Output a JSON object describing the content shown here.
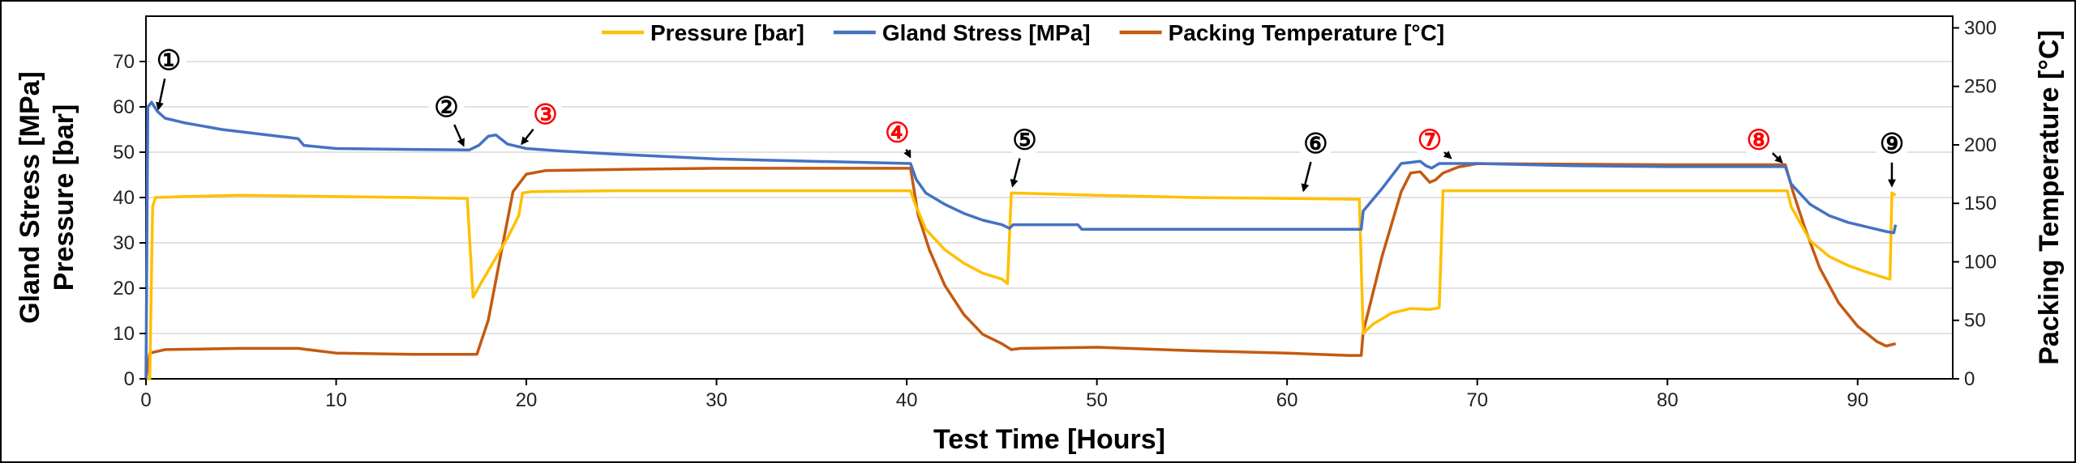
{
  "chart_data": {
    "type": "line",
    "title": "",
    "xlabel": "Test Time [Hours]",
    "ylabel_left_lines": [
      "Gland Stress [MPa]",
      "Pressure [bar]"
    ],
    "ylabel_right": "Packing Temperature [°C]",
    "xlim": [
      0,
      95
    ],
    "xticks": [
      0,
      10,
      20,
      30,
      40,
      50,
      60,
      70,
      80,
      90
    ],
    "ylim_left": [
      0,
      80
    ],
    "yticks_left": [
      0,
      10,
      20,
      30,
      40,
      50,
      60,
      70
    ],
    "ylim_right": [
      0,
      310
    ],
    "yticks_right": [
      0,
      50,
      100,
      150,
      200,
      250,
      300
    ],
    "grid": true,
    "legend_position": "top",
    "series": [
      {
        "name": "Pressure [bar]",
        "axis": "left",
        "color": "#FFC000",
        "points": [
          [
            0,
            0
          ],
          [
            0.2,
            0
          ],
          [
            0.35,
            38
          ],
          [
            0.5,
            40
          ],
          [
            2,
            40.2
          ],
          [
            5,
            40.5
          ],
          [
            10,
            40.2
          ],
          [
            14,
            40
          ],
          [
            16.9,
            39.8
          ],
          [
            17,
            32
          ],
          [
            17.2,
            18
          ],
          [
            17.6,
            21
          ],
          [
            18.3,
            26
          ],
          [
            19,
            31
          ],
          [
            19.6,
            36
          ],
          [
            19.8,
            41
          ],
          [
            20.3,
            41.3
          ],
          [
            25,
            41.5
          ],
          [
            30,
            41.5
          ],
          [
            35,
            41.5
          ],
          [
            40.2,
            41.5
          ],
          [
            40.4,
            39
          ],
          [
            41,
            33
          ],
          [
            42,
            28.5
          ],
          [
            43,
            25.5
          ],
          [
            44,
            23.3
          ],
          [
            45,
            22
          ],
          [
            45.3,
            21
          ],
          [
            45.5,
            41
          ],
          [
            50,
            40.5
          ],
          [
            55,
            40
          ],
          [
            60,
            39.8
          ],
          [
            63.8,
            39.6
          ],
          [
            64,
            10
          ],
          [
            64.5,
            12
          ],
          [
            65.5,
            14.5
          ],
          [
            66.5,
            15.5
          ],
          [
            67.5,
            15.3
          ],
          [
            67.8,
            15.5
          ],
          [
            68,
            15.7
          ],
          [
            68.2,
            41.5
          ],
          [
            72,
            41.5
          ],
          [
            80,
            41.5
          ],
          [
            86.3,
            41.5
          ],
          [
            86.5,
            38
          ],
          [
            87.5,
            30.5
          ],
          [
            88.5,
            27
          ],
          [
            89.5,
            25
          ],
          [
            90.5,
            23.5
          ],
          [
            91.5,
            22.2
          ],
          [
            91.7,
            22
          ],
          [
            91.8,
            41
          ],
          [
            92,
            40.5
          ]
        ]
      },
      {
        "name": "Gland Stress [MPa]",
        "axis": "left",
        "color": "#4472C4",
        "points": [
          [
            0,
            0
          ],
          [
            0.1,
            60
          ],
          [
            0.3,
            61
          ],
          [
            0.6,
            59
          ],
          [
            1,
            57.5
          ],
          [
            2,
            56.5
          ],
          [
            4,
            55
          ],
          [
            6,
            54
          ],
          [
            8,
            53
          ],
          [
            8.3,
            51.5
          ],
          [
            10,
            50.8
          ],
          [
            14,
            50.6
          ],
          [
            17,
            50.5
          ],
          [
            17.5,
            51.5
          ],
          [
            18,
            53.5
          ],
          [
            18.4,
            53.8
          ],
          [
            19,
            51.8
          ],
          [
            20,
            50.8
          ],
          [
            22,
            50.2
          ],
          [
            25,
            49.5
          ],
          [
            30,
            48.5
          ],
          [
            35,
            48
          ],
          [
            40.2,
            47.5
          ],
          [
            40.5,
            44
          ],
          [
            41,
            41
          ],
          [
            42,
            38.5
          ],
          [
            43,
            36.5
          ],
          [
            44,
            35
          ],
          [
            45,
            34
          ],
          [
            45.4,
            33.2
          ],
          [
            45.6,
            34
          ],
          [
            49,
            34
          ],
          [
            49.2,
            33
          ],
          [
            55,
            33
          ],
          [
            60,
            33
          ],
          [
            63.9,
            33
          ],
          [
            64,
            37
          ],
          [
            65,
            42
          ],
          [
            66,
            47.5
          ],
          [
            67,
            48
          ],
          [
            67.3,
            47
          ],
          [
            67.6,
            46.5
          ],
          [
            68,
            47.5
          ],
          [
            70,
            47.5
          ],
          [
            75,
            47
          ],
          [
            80,
            46.8
          ],
          [
            86.2,
            46.8
          ],
          [
            86.5,
            43
          ],
          [
            87.5,
            38.5
          ],
          [
            88.5,
            36
          ],
          [
            89.5,
            34.5
          ],
          [
            90.5,
            33.5
          ],
          [
            91.5,
            32.5
          ],
          [
            91.9,
            32.2
          ],
          [
            92,
            34
          ]
        ]
      },
      {
        "name": "Packing Temperature [°C]",
        "axis": "right",
        "color": "#C55A11",
        "points": [
          [
            0,
            0
          ],
          [
            0.2,
            22
          ],
          [
            1,
            25
          ],
          [
            5,
            26
          ],
          [
            8,
            26
          ],
          [
            10,
            22
          ],
          [
            14,
            21
          ],
          [
            17,
            21
          ],
          [
            17.4,
            21
          ],
          [
            18,
            50
          ],
          [
            18.7,
            110
          ],
          [
            19.3,
            160
          ],
          [
            20,
            175
          ],
          [
            21,
            178
          ],
          [
            25,
            179
          ],
          [
            30,
            180
          ],
          [
            35,
            180
          ],
          [
            40,
            180
          ],
          [
            40.2,
            180
          ],
          [
            40.6,
            140
          ],
          [
            41.2,
            110
          ],
          [
            42,
            80
          ],
          [
            43,
            55
          ],
          [
            44,
            38
          ],
          [
            45,
            30
          ],
          [
            45.5,
            25
          ],
          [
            46,
            26
          ],
          [
            50,
            27
          ],
          [
            55,
            24
          ],
          [
            60,
            22
          ],
          [
            63.2,
            20
          ],
          [
            63.9,
            20
          ],
          [
            64,
            40
          ],
          [
            65,
            105
          ],
          [
            66,
            160
          ],
          [
            66.5,
            176
          ],
          [
            67,
            177
          ],
          [
            67.5,
            168
          ],
          [
            67.8,
            170
          ],
          [
            68.2,
            176
          ],
          [
            69,
            181
          ],
          [
            70,
            184
          ],
          [
            80,
            183
          ],
          [
            86.2,
            183
          ],
          [
            86.6,
            160
          ],
          [
            87.2,
            130
          ],
          [
            88,
            95
          ],
          [
            89,
            65
          ],
          [
            90,
            45
          ],
          [
            91,
            32
          ],
          [
            91.5,
            28
          ],
          [
            92,
            30
          ]
        ]
      }
    ],
    "annotations": [
      {
        "label": "①",
        "color": "#000000",
        "x": 1.2,
        "y_frac": 0.88,
        "tip_x": 0.6,
        "tip_y": 58.5
      },
      {
        "label": "②",
        "color": "#000000",
        "x": 15.8,
        "y_frac": 0.75,
        "tip_x": 16.8,
        "tip_y": 50.5
      },
      {
        "label": "③",
        "color": "#FF0000",
        "x": 21,
        "y_frac": 0.73,
        "tip_x": 19.6,
        "tip_y": 51
      },
      {
        "label": "④",
        "color": "#FF0000",
        "x": 39.5,
        "y_frac": 0.68,
        "tip_x": 40.3,
        "tip_y": 48
      },
      {
        "label": "⑤",
        "color": "#000000",
        "x": 46.2,
        "y_frac": 0.66,
        "tip_x": 45.5,
        "tip_y": 41.5
      },
      {
        "label": "⑥",
        "color": "#000000",
        "x": 61.5,
        "y_frac": 0.65,
        "tip_x": 60.8,
        "tip_y": 40.5
      },
      {
        "label": "⑦",
        "color": "#FF0000",
        "x": 67.5,
        "y_frac": 0.66,
        "tip_x": 68.8,
        "tip_y": 48
      },
      {
        "label": "⑧",
        "color": "#FF0000",
        "x": 84.8,
        "y_frac": 0.66,
        "tip_x": 86.2,
        "tip_y": 47
      },
      {
        "label": "⑨",
        "color": "#000000",
        "x": 91.8,
        "y_frac": 0.65,
        "tip_x": 91.8,
        "tip_y": 41.5
      }
    ]
  }
}
